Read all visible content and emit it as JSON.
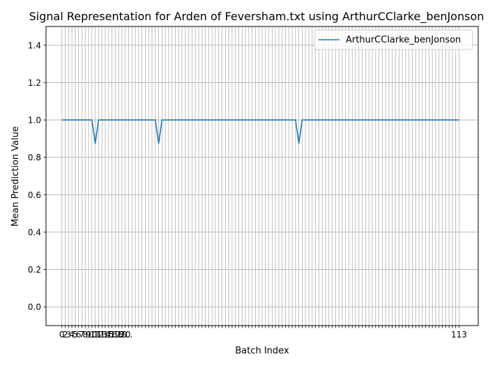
{
  "chart_data": {
    "type": "line",
    "title": "Signal Representation for Arden of Feversham.txt using ArthurCClarke_benJonson",
    "xlabel": "Batch Index",
    "ylabel": "Mean Prediction Value",
    "xlim": [
      -4.75,
      124.75
    ],
    "ylim": [
      -0.1,
      1.5
    ],
    "x_tick_range": [
      0,
      119
    ],
    "y_ticks": [
      0.0,
      0.2,
      0.4,
      0.6,
      0.8,
      1.0,
      1.2,
      1.4
    ],
    "y_tick_labels": [
      "0.0",
      "0.2",
      "0.4",
      "0.6",
      "0.8",
      "1.0",
      "1.2",
      "1.4"
    ],
    "x_tick_labels_visible": [
      "0",
      "2",
      "3",
      "4",
      "5",
      "6",
      "7",
      "8",
      "9",
      "10",
      "11",
      "12",
      "13",
      "14",
      "15",
      "16",
      "17",
      "18",
      "19",
      "20",
      "...",
      "113"
    ],
    "grid": true,
    "legend_position": "upper right",
    "series": [
      {
        "name": "ArthurCClarke_benJonson",
        "color": "#1f77b4",
        "x": [
          0,
          9,
          10,
          11,
          28,
          29,
          30,
          70,
          71,
          72,
          119
        ],
        "y": [
          1.0,
          1.0,
          0.875,
          1.0,
          1.0,
          0.875,
          1.0,
          1.0,
          0.875,
          1.0,
          1.0
        ]
      }
    ]
  }
}
